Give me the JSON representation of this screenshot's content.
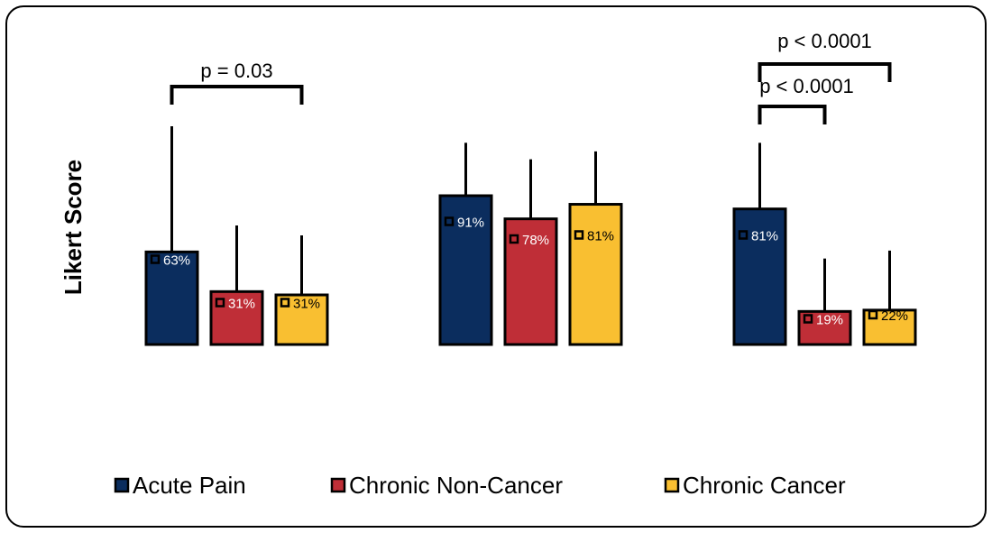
{
  "chart_data": {
    "type": "bar",
    "ylabel": "Likert Score",
    "xlabel": "",
    "categories": [
      "",
      "",
      ""
    ],
    "series": [
      {
        "name": "Acute Pain",
        "color": "#0b2d5e",
        "values": [
          3.9,
          4.75,
          4.55
        ],
        "errors": [
          1.9,
          0.8,
          1.0
        ],
        "percent_labels": [
          "63%",
          "91%",
          "81%"
        ],
        "percent_markers": [
          0.63,
          0.91,
          0.81
        ]
      },
      {
        "name": "Chronic Non-Cancer",
        "color": "#bf2e37",
        "values": [
          3.3,
          4.4,
          3.0
        ],
        "errors": [
          1.0,
          0.9,
          0.8
        ],
        "percent_labels": [
          "31%",
          "78%",
          "19%"
        ],
        "percent_markers": [
          0.31,
          0.78,
          0.19
        ]
      },
      {
        "name": "Chronic Cancer",
        "color": "#f9bf31",
        "values": [
          3.25,
          4.62,
          3.02
        ],
        "errors": [
          0.9,
          0.8,
          0.9
        ],
        "percent_labels": [
          "31%",
          "81%",
          "22%"
        ],
        "percent_markers": [
          0.31,
          0.81,
          0.22
        ]
      }
    ],
    "annotations": [
      {
        "group": 0,
        "from": 0,
        "to": 2,
        "text": "p = 0.03"
      },
      {
        "group": 2,
        "from": 0,
        "to": 1,
        "text": "p < 0.0001"
      },
      {
        "group": 2,
        "from": 0,
        "to": 2,
        "text": "p < 0.0001"
      }
    ],
    "legend": {
      "position": "bottom",
      "entries": [
        "Acute Pain",
        "Chronic Non-Cancer",
        "Chronic Cancer"
      ]
    },
    "grid": false
  }
}
